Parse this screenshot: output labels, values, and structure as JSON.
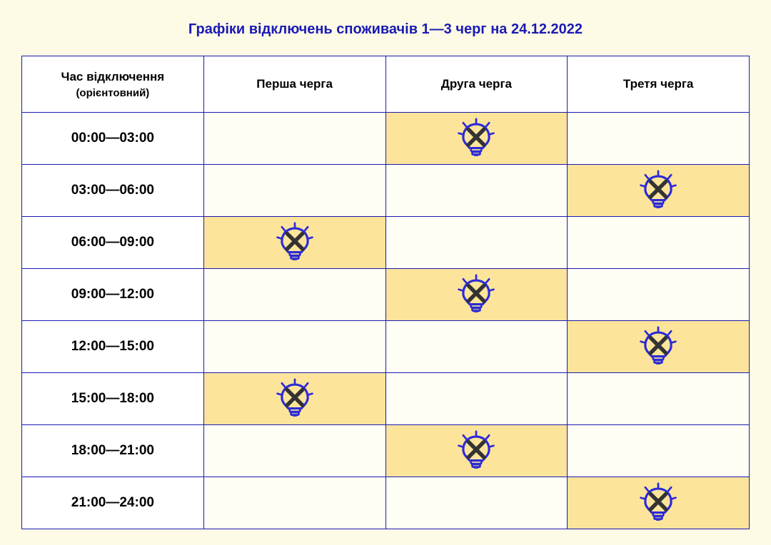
{
  "title": "Графіки відключень споживачів 1—3 черг на 24.12.2022",
  "headers": {
    "time_main": "Час відключення",
    "time_sub": "(орієнтовний)",
    "q1": "Перша черга",
    "q2": "Друга черга",
    "q3": "Третя черга"
  },
  "colors": {
    "page_bg": "#fdfae6",
    "cell_bg": "#fffef4",
    "off_bg": "#fde49b",
    "border": "#1a1ab3",
    "title": "#1a1ab3",
    "bulb_outline": "#2b2bd6",
    "bulb_x": "#333333"
  },
  "schedule": {
    "time_slots": [
      "00:00—03:00",
      "03:00—06:00",
      "06:00—09:00",
      "09:00—12:00",
      "12:00—15:00",
      "15:00—18:00",
      "18:00—21:00",
      "21:00—24:00"
    ],
    "queues": [
      "q1",
      "q2",
      "q3"
    ],
    "off_matrix": [
      [
        false,
        true,
        false
      ],
      [
        false,
        false,
        true
      ],
      [
        true,
        false,
        false
      ],
      [
        false,
        true,
        false
      ],
      [
        false,
        false,
        true
      ],
      [
        true,
        false,
        false
      ],
      [
        false,
        true,
        false
      ],
      [
        false,
        false,
        true
      ]
    ]
  },
  "icon_name": "bulb-off-icon"
}
